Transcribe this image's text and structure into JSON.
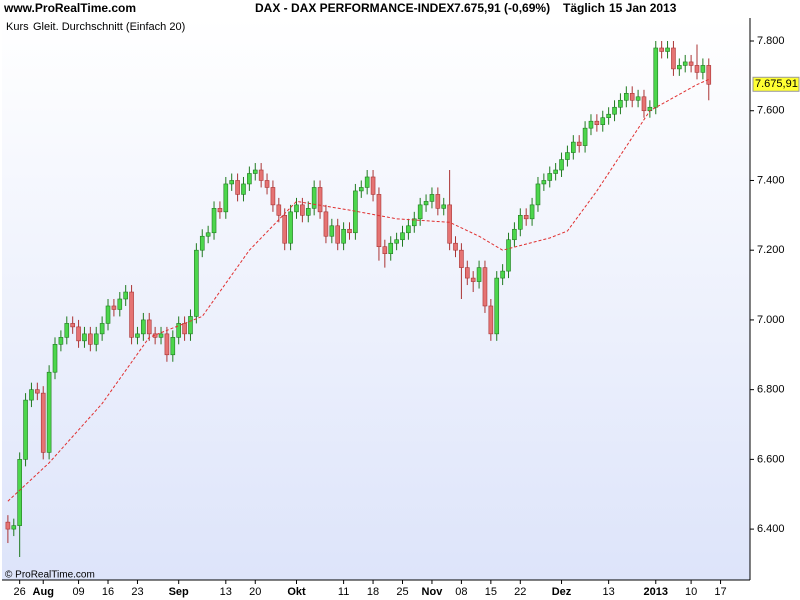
{
  "chart_data": {
    "type": "candlestick",
    "site": "www.ProRealTime.com",
    "title": "DAX - DAX PERFORMANCE-INDEX",
    "quote": "7.675,91 (-0,69%)",
    "period": "Täglich",
    "date": "15 Jan 2013",
    "footer": "© ProRealTime.com",
    "ylim": [
      6254,
      7866
    ],
    "yticks": [
      {
        "value": 6400,
        "label": "6.400"
      },
      {
        "value": 6600,
        "label": "6.600"
      },
      {
        "value": 6800,
        "label": "6.800"
      },
      {
        "value": 7000,
        "label": "7.000"
      },
      {
        "value": 7200,
        "label": "7.200"
      },
      {
        "value": 7400,
        "label": "7.400"
      },
      {
        "value": 7600,
        "label": "7.600"
      },
      {
        "value": 7800,
        "label": "7.800"
      }
    ],
    "xlim": [
      -1,
      126
    ],
    "xticks": [
      {
        "value": 2,
        "label": "26"
      },
      {
        "value": 6,
        "label": "Aug"
      },
      {
        "value": 12,
        "label": "09"
      },
      {
        "value": 17,
        "label": "16"
      },
      {
        "value": 22,
        "label": "23"
      },
      {
        "value": 29,
        "label": "Sep"
      },
      {
        "value": 37,
        "label": "13"
      },
      {
        "value": 42,
        "label": "20"
      },
      {
        "value": 49,
        "label": "Okt"
      },
      {
        "value": 57,
        "label": "11"
      },
      {
        "value": 62,
        "label": "18"
      },
      {
        "value": 67,
        "label": "25"
      },
      {
        "value": 72,
        "label": "Nov"
      },
      {
        "value": 77,
        "label": "08"
      },
      {
        "value": 82,
        "label": "15"
      },
      {
        "value": 87,
        "label": "22"
      },
      {
        "value": 94,
        "label": "Dez"
      },
      {
        "value": 102,
        "label": "13"
      },
      {
        "value": 110,
        "label": "2013"
      },
      {
        "value": 116,
        "label": "10"
      },
      {
        "value": 121,
        "label": "17"
      }
    ],
    "series": [
      {
        "name": "Kurs",
        "type": "candlestick",
        "up_color": "#4cd64c",
        "down_color": "#e57373",
        "open": [
          6420,
          6400,
          6410,
          6600,
          6770,
          6800,
          6790,
          6620,
          6850,
          6930,
          6950,
          6990,
          6980,
          6940,
          6960,
          6930,
          6960,
          6990,
          7040,
          7030,
          7060,
          7080,
          6950,
          6960,
          7000,
          6960,
          6950,
          6960,
          6900,
          6950,
          6990,
          6960,
          7010,
          7200,
          7240,
          7250,
          7320,
          7310,
          7390,
          7400,
          7360,
          7390,
          7420,
          7430,
          7400,
          7380,
          7330,
          7300,
          7220,
          7310,
          7330,
          7300,
          7320,
          7380,
          7310,
          7240,
          7270,
          7220,
          7260,
          7250,
          7370,
          7380,
          7410,
          7360,
          7210,
          7190,
          7220,
          7230,
          7250,
          7270,
          7290,
          7330,
          7340,
          7360,
          7320,
          7330,
          7220,
          7200,
          7150,
          7120,
          7110,
          7150,
          7040,
          6960,
          7120,
          7140,
          7230,
          7260,
          7300,
          7290,
          7330,
          7390,
          7400,
          7420,
          7430,
          7460,
          7480,
          7510,
          7500,
          7550,
          7570,
          7560,
          7580,
          7590,
          7610,
          7630,
          7650,
          7630,
          7640,
          7600,
          7610,
          7780,
          7770,
          7780,
          7720,
          7730,
          7740,
          7730,
          7710,
          7730
        ],
        "high": [
          6440,
          6430,
          6620,
          6790,
          6820,
          6820,
          6810,
          6870,
          6950,
          6970,
          7010,
          7010,
          7000,
          6980,
          6980,
          6980,
          7010,
          7060,
          7060,
          7080,
          7100,
          7100,
          6980,
          7020,
          7020,
          6980,
          6980,
          6980,
          6970,
          7010,
          7010,
          7030,
          7220,
          7260,
          7270,
          7340,
          7340,
          7410,
          7420,
          7420,
          7410,
          7440,
          7450,
          7450,
          7420,
          7400,
          7350,
          7320,
          7330,
          7350,
          7350,
          7340,
          7400,
          7400,
          7330,
          7290,
          7290,
          7280,
          7280,
          7390,
          7400,
          7430,
          7430,
          7380,
          7230,
          7240,
          7250,
          7270,
          7290,
          7310,
          7350,
          7360,
          7380,
          7380,
          7350,
          7430,
          7240,
          7220,
          7170,
          7140,
          7170,
          7170,
          7060,
          7140,
          7160,
          7250,
          7280,
          7320,
          7320,
          7350,
          7410,
          7420,
          7440,
          7450,
          7480,
          7500,
          7530,
          7530,
          7570,
          7590,
          7590,
          7600,
          7610,
          7630,
          7650,
          7670,
          7670,
          7660,
          7660,
          7630,
          7800,
          7800,
          7800,
          7800,
          7750,
          7760,
          7760,
          7790,
          7750,
          7750
        ],
        "low": [
          6360,
          6380,
          6320,
          6580,
          6750,
          6770,
          6600,
          6600,
          6830,
          6910,
          6930,
          6960,
          6920,
          6920,
          6910,
          6910,
          6940,
          6970,
          7010,
          7010,
          7040,
          6930,
          6930,
          6940,
          6940,
          6930,
          6930,
          6880,
          6880,
          6930,
          6940,
          6940,
          6990,
          7180,
          7220,
          7230,
          7290,
          7290,
          7370,
          7340,
          7340,
          7370,
          7400,
          7380,
          7360,
          7310,
          7280,
          7200,
          7200,
          7290,
          7280,
          7280,
          7300,
          7290,
          7220,
          7220,
          7200,
          7200,
          7230,
          7230,
          7350,
          7360,
          7340,
          7170,
          7150,
          7170,
          7200,
          7210,
          7230,
          7250,
          7270,
          7310,
          7320,
          7300,
          7300,
          7200,
          7180,
          7060,
          7100,
          7080,
          7090,
          7020,
          6940,
          6940,
          7100,
          7120,
          7210,
          7240,
          7270,
          7270,
          7310,
          7370,
          7380,
          7400,
          7410,
          7440,
          7460,
          7480,
          7480,
          7530,
          7540,
          7540,
          7560,
          7570,
          7590,
          7610,
          7610,
          7610,
          7580,
          7580,
          7590,
          7750,
          7750,
          7700,
          7700,
          7710,
          7710,
          7690,
          7690,
          7630
        ],
        "close": [
          6400,
          6410,
          6600,
          6770,
          6800,
          6790,
          6620,
          6850,
          6930,
          6950,
          6990,
          6980,
          6940,
          6960,
          6930,
          6960,
          6990,
          7040,
          7030,
          7060,
          7080,
          6950,
          6960,
          7000,
          6960,
          6950,
          6960,
          6900,
          6950,
          6990,
          6960,
          7010,
          7200,
          7240,
          7250,
          7320,
          7310,
          7390,
          7400,
          7360,
          7390,
          7420,
          7430,
          7400,
          7380,
          7330,
          7300,
          7220,
          7310,
          7330,
          7300,
          7320,
          7380,
          7310,
          7240,
          7270,
          7220,
          7260,
          7250,
          7370,
          7380,
          7410,
          7360,
          7210,
          7190,
          7220,
          7230,
          7250,
          7270,
          7290,
          7330,
          7340,
          7360,
          7320,
          7330,
          7220,
          7200,
          7150,
          7120,
          7110,
          7150,
          7040,
          6960,
          7120,
          7140,
          7230,
          7260,
          7300,
          7290,
          7330,
          7390,
          7400,
          7420,
          7430,
          7460,
          7480,
          7510,
          7500,
          7550,
          7570,
          7560,
          7580,
          7590,
          7610,
          7630,
          7650,
          7630,
          7640,
          7600,
          7610,
          7780,
          7770,
          7780,
          7720,
          7730,
          7740,
          7730,
          7710,
          7730,
          7675.91
        ]
      },
      {
        "name": "Gleit. Durchschnitt (Einfach 20)",
        "type": "line",
        "color": "#e03030",
        "dashed": true,
        "x": [
          0,
          7,
          16,
          24,
          33,
          41,
          49,
          58,
          66,
          75,
          80,
          84,
          92,
          95,
          100,
          109,
          117,
          119
        ],
        "values": [
          6480,
          6590,
          6760,
          6950,
          7010,
          7200,
          7340,
          7315,
          7290,
          7280,
          7240,
          7200,
          7235,
          7255,
          7370,
          7600,
          7675,
          7690
        ]
      }
    ],
    "last_price": {
      "value": 7675.91,
      "label": "7.675,91"
    }
  }
}
